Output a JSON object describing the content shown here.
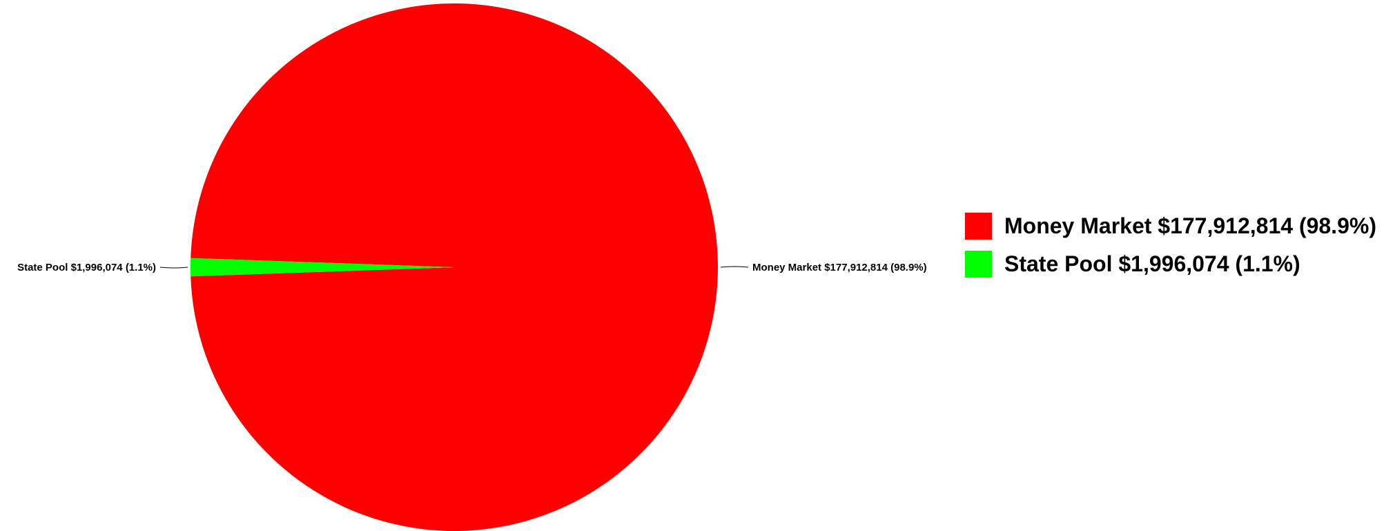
{
  "chart_data": {
    "type": "pie",
    "slices": [
      {
        "name": "Money Market",
        "value": 177912814,
        "percent": 98.9,
        "label": "Money Market $177,912,814 (98.9%)",
        "color": "#ff0000"
      },
      {
        "name": "State Pool",
        "value": 1996074,
        "percent": 1.1,
        "label": "State Pool $1,996,074 (1.1%)",
        "color": "#00ff00"
      }
    ],
    "legend_position": "right"
  }
}
